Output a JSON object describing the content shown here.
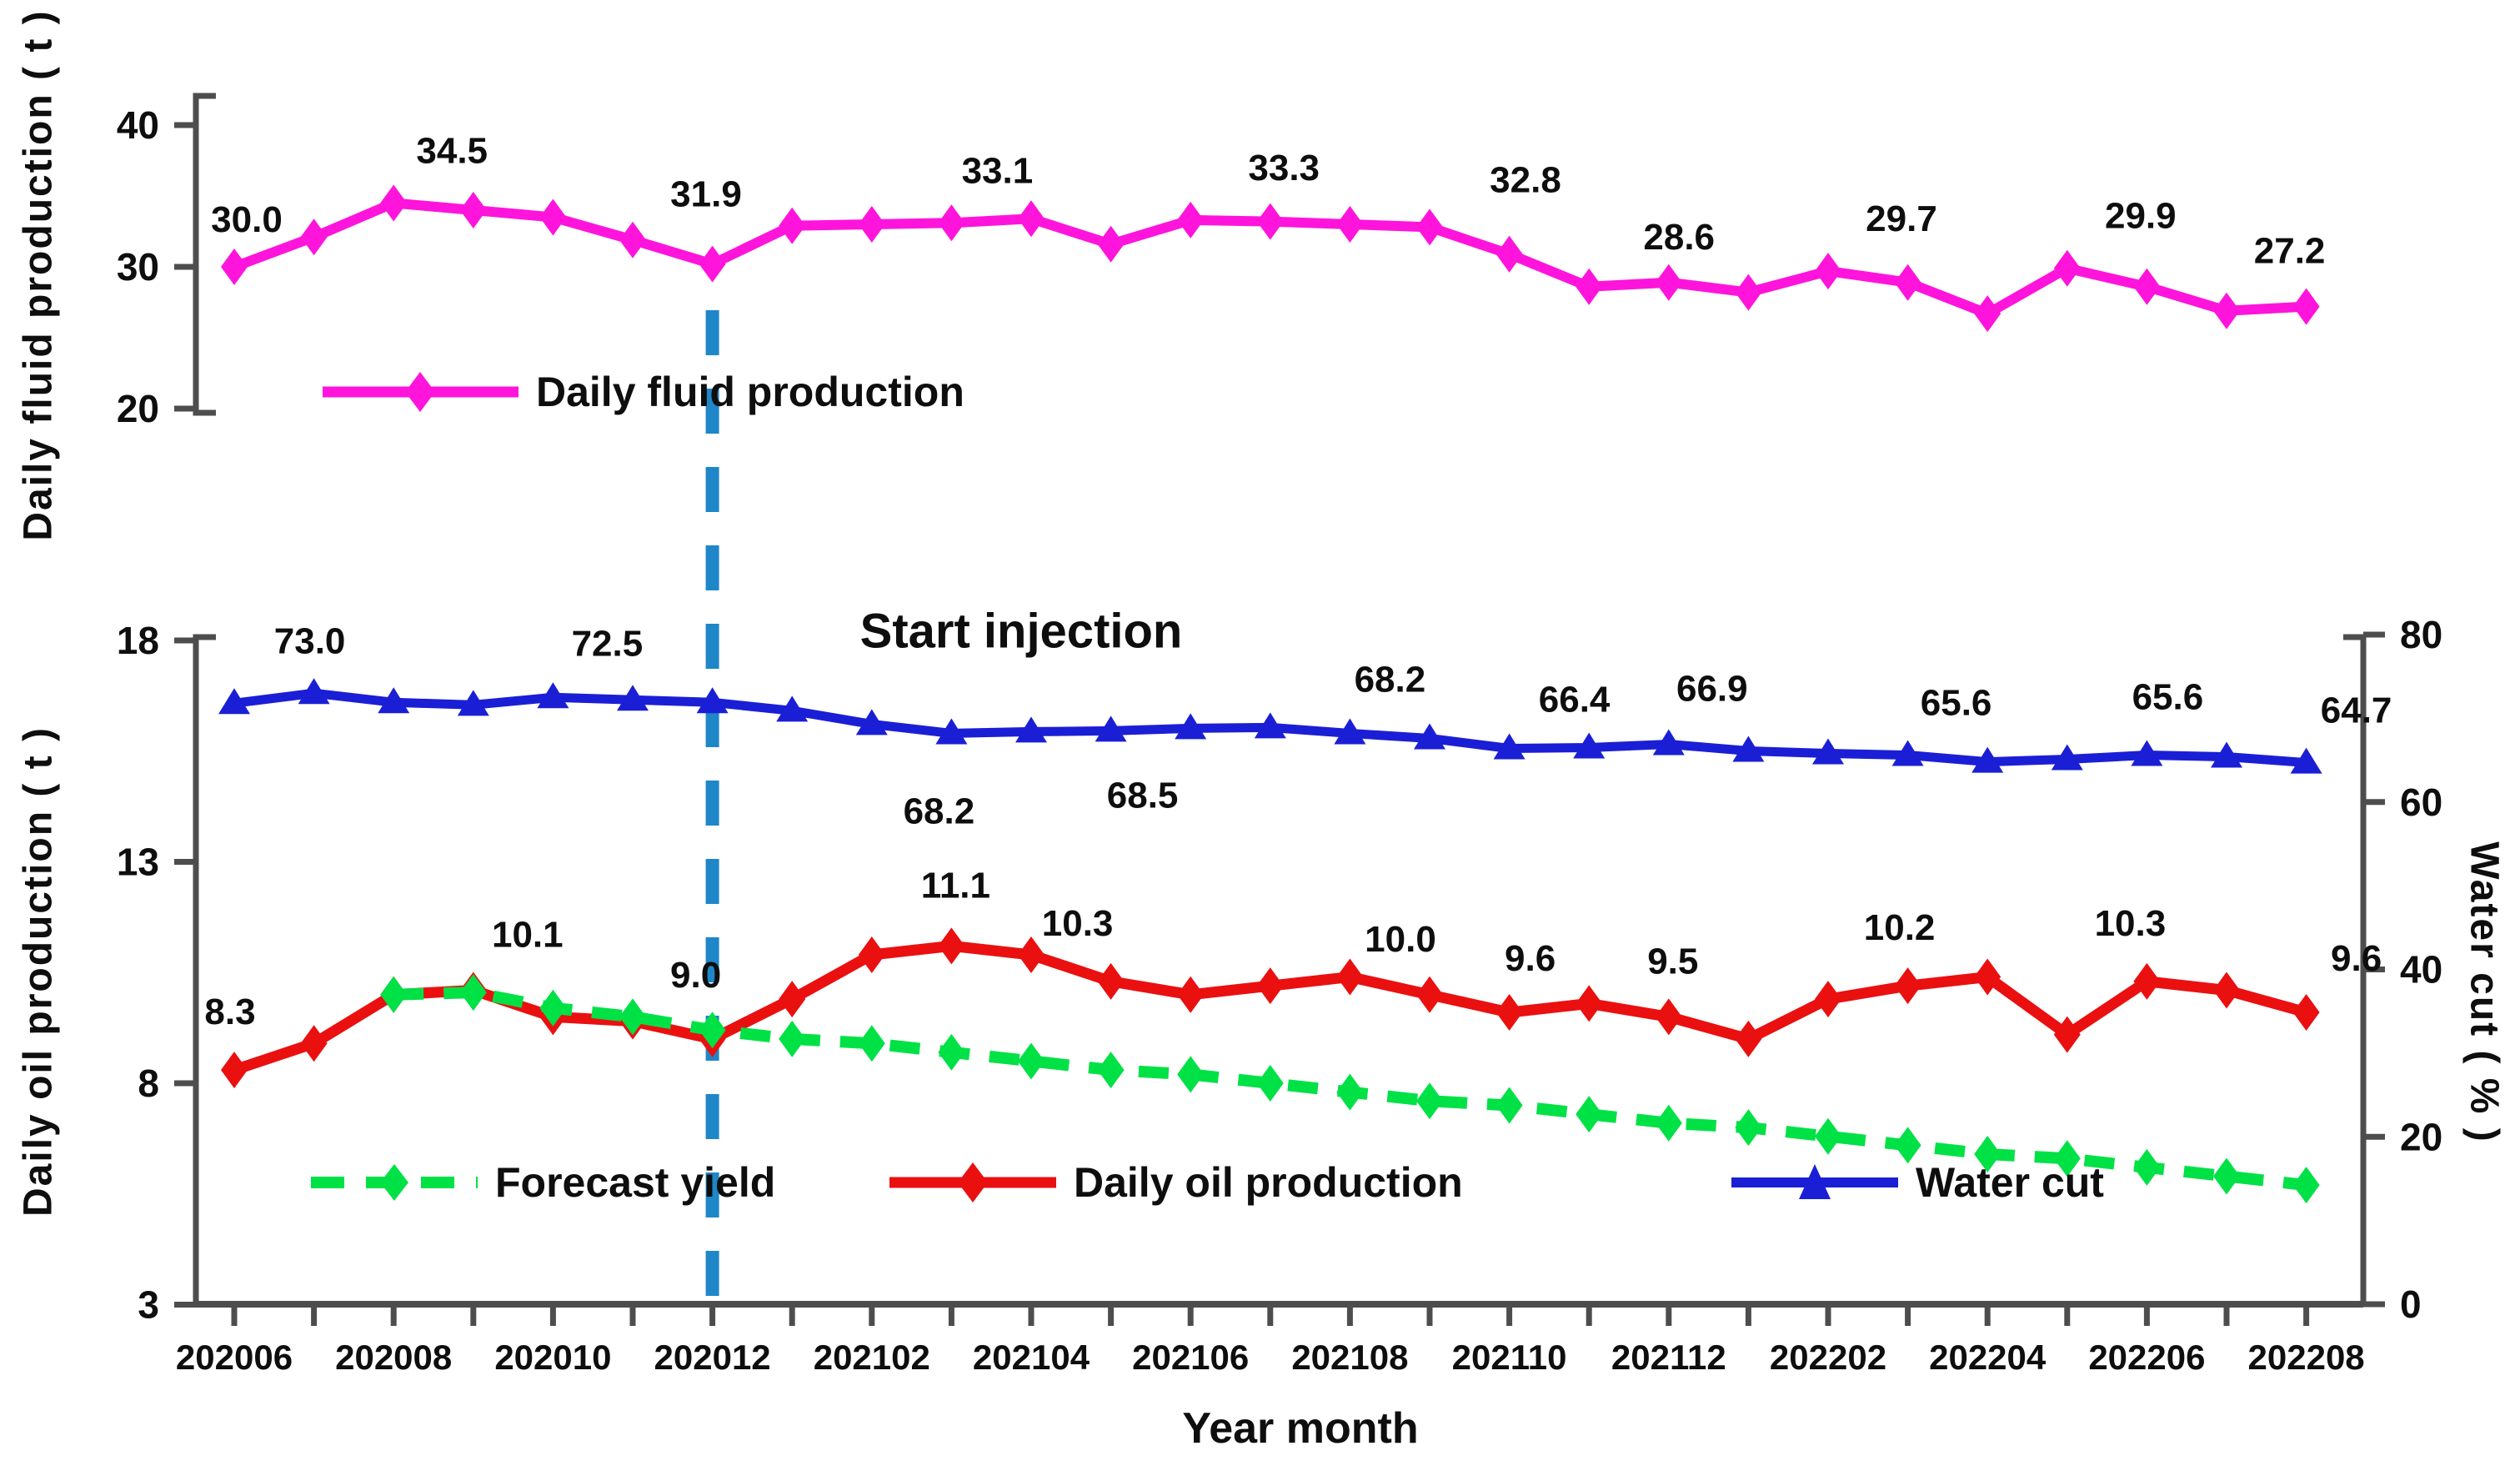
{
  "annotation": "Start injection",
  "axes": {
    "fluid": {
      "title": "Daily fluid production ( t )",
      "ticks": [
        40,
        30,
        20
      ]
    },
    "oil": {
      "title": "Daily oil production ( t )",
      "ticks": [
        18,
        13,
        8,
        3
      ]
    },
    "water": {
      "title": "Water cut ( % )",
      "ticks": [
        80,
        60,
        40,
        20,
        0
      ]
    },
    "x": {
      "title": "Year month",
      "tick_labels": [
        "202006",
        "202008",
        "202010",
        "202012",
        "202102",
        "202104",
        "202106",
        "202108",
        "202110",
        "202112",
        "202202",
        "202204",
        "202206",
        "202208"
      ]
    }
  },
  "legend_top": {
    "fluid": "Daily fluid production"
  },
  "legend_bottom": {
    "forecast": "Forecast yield",
    "oil": "Daily oil production",
    "water": "Water cut"
  },
  "colors": {
    "fluid": "#ff14dc",
    "oil": "#ea1010",
    "water": "#1a1fd6",
    "forecast": "#00e145",
    "dash": "#1f86c8",
    "axis": "#4d4d4d",
    "text": "#0e0e0e"
  },
  "chart_data": {
    "type": "line",
    "x": [
      "202006",
      "202007",
      "202008",
      "202009",
      "202010",
      "202011",
      "202012",
      "202101",
      "202102",
      "202103",
      "202104",
      "202105",
      "202106",
      "202107",
      "202108",
      "202109",
      "202110",
      "202111",
      "202112",
      "202201",
      "202202",
      "202203",
      "202204",
      "202205",
      "202206",
      "202207",
      "202208"
    ],
    "event_line": {
      "x": "202012",
      "label": "Start injection"
    },
    "series": [
      {
        "name": "Daily fluid production",
        "axis": "fluid",
        "marker": "diamond",
        "style": "solid",
        "values": [
          30.0,
          32.1,
          34.5,
          34.0,
          33.5,
          31.9,
          30.2,
          32.9,
          33.0,
          33.1,
          33.4,
          31.6,
          33.3,
          33.2,
          33.0,
          32.8,
          30.9,
          28.6,
          28.9,
          28.2,
          29.7,
          28.9,
          26.7,
          29.9,
          28.6,
          26.9,
          27.2
        ],
        "labels": [
          {
            "i": 0,
            "text": "30.0"
          },
          {
            "i": 2,
            "text": "34.5"
          },
          {
            "i": 5,
            "text": "31.9"
          },
          {
            "i": 9,
            "text": "33.1"
          },
          {
            "i": 12,
            "text": "33.3"
          },
          {
            "i": 15,
            "text": "32.8"
          },
          {
            "i": 17,
            "text": "28.6"
          },
          {
            "i": 20,
            "text": "29.7"
          },
          {
            "i": 23,
            "text": "29.9"
          },
          {
            "i": 26,
            "text": "27.2"
          }
        ]
      },
      {
        "name": "Daily oil production",
        "axis": "oil",
        "marker": "diamond",
        "style": "solid",
        "values": [
          8.3,
          8.9,
          10.0,
          10.1,
          9.5,
          9.4,
          9.0,
          9.9,
          10.9,
          11.1,
          10.9,
          10.3,
          10.0,
          10.2,
          10.4,
          10.0,
          9.6,
          9.8,
          9.5,
          9.0,
          9.9,
          10.2,
          10.4,
          9.1,
          10.3,
          10.1,
          9.6
        ],
        "labels": [
          {
            "i": 0,
            "text": "8.3"
          },
          {
            "i": 3,
            "text": "10.1"
          },
          {
            "i": 6,
            "text": "9.0"
          },
          {
            "i": 9,
            "text": "11.1"
          },
          {
            "i": 11,
            "text": "10.3"
          },
          {
            "i": 15,
            "text": "10.0"
          },
          {
            "i": 16,
            "text": "9.6"
          },
          {
            "i": 18,
            "text": "9.5"
          },
          {
            "i": 21,
            "text": "10.2"
          },
          {
            "i": 24,
            "text": "10.3"
          },
          {
            "i": 26,
            "text": "9.6"
          }
        ]
      },
      {
        "name": "Water cut",
        "axis": "water",
        "marker": "triangle",
        "style": "solid",
        "values": [
          71.8,
          73.0,
          71.9,
          71.6,
          72.5,
          72.2,
          71.9,
          70.9,
          69.3,
          68.2,
          68.4,
          68.5,
          68.8,
          68.9,
          68.2,
          67.6,
          66.4,
          66.5,
          66.9,
          66.1,
          65.8,
          65.6,
          64.8,
          65.1,
          65.6,
          65.4,
          64.7
        ],
        "labels": [
          {
            "i": 1,
            "text": "73.0"
          },
          {
            "i": 4,
            "text": "72.5"
          },
          {
            "i": 9,
            "text": "68.2",
            "below": true
          },
          {
            "i": 11,
            "text": "68.5",
            "below": true
          },
          {
            "i": 14,
            "text": "68.2"
          },
          {
            "i": 16,
            "text": "66.4"
          },
          {
            "i": 18,
            "text": "66.9"
          },
          {
            "i": 21,
            "text": "65.6"
          },
          {
            "i": 24,
            "text": "65.6"
          },
          {
            "i": 26,
            "text": "64.7"
          }
        ]
      },
      {
        "name": "Forecast yield",
        "axis": "oil",
        "marker": "diamond",
        "style": "dashed",
        "values": [
          null,
          null,
          10.0,
          10.05,
          9.7,
          9.5,
          9.2,
          9.0,
          8.9,
          8.7,
          8.5,
          8.3,
          8.2,
          8.0,
          7.8,
          7.6,
          7.5,
          7.3,
          7.1,
          7.0,
          6.8,
          6.6,
          6.4,
          6.3,
          6.1,
          5.9,
          5.7
        ],
        "labels": []
      }
    ],
    "axis_ranges": {
      "fluid_ticks_y": [
        40,
        30,
        20
      ],
      "oil_ticks_y": [
        18,
        13,
        8,
        3
      ],
      "water_ticks_y": [
        80,
        60,
        40,
        20,
        0
      ]
    },
    "grid": false,
    "legend_position": {
      "fluid": "inside-top-chart",
      "others": "inside-bottom-chart"
    }
  }
}
